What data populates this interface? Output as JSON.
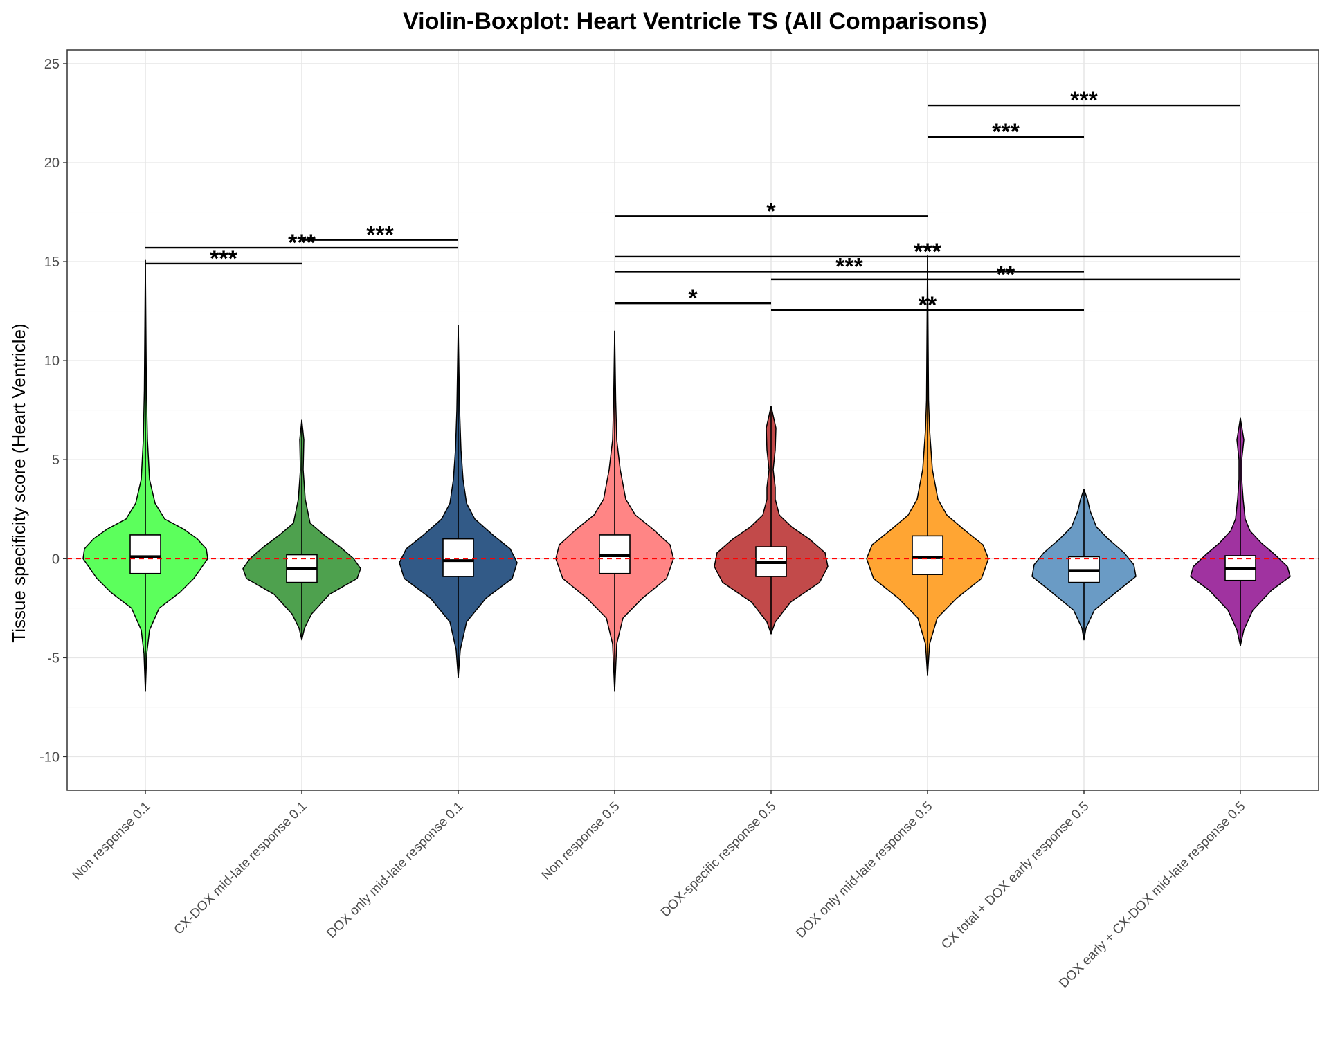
{
  "chart_data": {
    "type": "violin",
    "title": "Violin-Boxplot: Heart Ventricle TS (All Comparisons)",
    "xlabel": "",
    "ylabel": "Tissue specificity score (Heart Ventricle)",
    "ylim": [
      -11.7,
      25.7
    ],
    "yticks": [
      -10,
      -5,
      0,
      5,
      10,
      15,
      20,
      25
    ],
    "reference_line": {
      "y": 0,
      "color": "#ff0000",
      "style": "dashed"
    },
    "grid": true,
    "categories": [
      "Non response 0.1",
      "CX-DOX mid-late response 0.1",
      "DOX only mid-late response 0.1",
      "Non response 0.5",
      "DOX-specific response 0.5",
      "DOX only mid-late response 0.5",
      "CX total + DOX early response 0.5",
      "DOX early + CX-DOX mid-late response 0.5"
    ],
    "groups": [
      {
        "color": "#5cff5c",
        "min": -6.7,
        "max": 15.1,
        "q1": -0.75,
        "median": 0.1,
        "q3": 1.2,
        "whisker_low": -3.8,
        "whisker_high": 4.1,
        "profile": [
          [
            -6.7,
            0
          ],
          [
            -4.8,
            2
          ],
          [
            -3.6,
            6
          ],
          [
            -2.5,
            20
          ],
          [
            -1.7,
            50
          ],
          [
            -1.0,
            70
          ],
          [
            0.0,
            90
          ],
          [
            0.5,
            88
          ],
          [
            1.0,
            75
          ],
          [
            1.5,
            55
          ],
          [
            2.0,
            28
          ],
          [
            2.8,
            14
          ],
          [
            4.0,
            6
          ],
          [
            6.0,
            3
          ],
          [
            8.5,
            1.5
          ],
          [
            15.1,
            0
          ]
        ]
      },
      {
        "color": "#4ea14e",
        "min": -4.1,
        "max": 7.0,
        "q1": -1.2,
        "median": -0.5,
        "q3": 0.2,
        "whisker_low": -3.3,
        "whisker_high": 2.4,
        "profile": [
          [
            -4.1,
            0
          ],
          [
            -3.5,
            4
          ],
          [
            -2.8,
            14
          ],
          [
            -1.8,
            40
          ],
          [
            -1.0,
            80
          ],
          [
            -0.5,
            85
          ],
          [
            0.0,
            75
          ],
          [
            0.6,
            55
          ],
          [
            1.2,
            32
          ],
          [
            1.8,
            12
          ],
          [
            3.0,
            5
          ],
          [
            4.5,
            2
          ],
          [
            6.0,
            3
          ],
          [
            7.0,
            0
          ]
        ]
      },
      {
        "color": "#325a87",
        "min": -6.0,
        "max": 11.8,
        "q1": -0.9,
        "median": -0.1,
        "q3": 1.0,
        "whisker_low": -3.7,
        "whisker_high": 3.6,
        "profile": [
          [
            -6.0,
            0
          ],
          [
            -4.6,
            3
          ],
          [
            -3.2,
            12
          ],
          [
            -2.0,
            40
          ],
          [
            -1.0,
            78
          ],
          [
            -0.2,
            85
          ],
          [
            0.5,
            75
          ],
          [
            1.2,
            50
          ],
          [
            2.0,
            24
          ],
          [
            2.8,
            12
          ],
          [
            4.0,
            7
          ],
          [
            5.5,
            4
          ],
          [
            7.5,
            2
          ],
          [
            11.8,
            0
          ]
        ]
      },
      {
        "color": "#ff8585",
        "min": -6.7,
        "max": 11.5,
        "q1": -0.75,
        "median": 0.15,
        "q3": 1.2,
        "whisker_low": -3.9,
        "whisker_high": 4.1,
        "profile": [
          [
            -6.7,
            0
          ],
          [
            -4.3,
            3
          ],
          [
            -3.0,
            12
          ],
          [
            -2.0,
            40
          ],
          [
            -1.0,
            75
          ],
          [
            0.0,
            85
          ],
          [
            0.7,
            80
          ],
          [
            1.5,
            55
          ],
          [
            2.2,
            30
          ],
          [
            3.0,
            16
          ],
          [
            4.5,
            8
          ],
          [
            6.0,
            3
          ],
          [
            8.0,
            1.5
          ],
          [
            11.5,
            0
          ]
        ]
      },
      {
        "color": "#c24a4a",
        "min": -3.8,
        "max": 7.7,
        "q1": -0.9,
        "median": -0.2,
        "q3": 0.6,
        "whisker_low": -3.0,
        "whisker_high": 2.4,
        "profile": [
          [
            -3.8,
            0
          ],
          [
            -3.2,
            6
          ],
          [
            -2.2,
            28
          ],
          [
            -1.2,
            70
          ],
          [
            -0.4,
            82
          ],
          [
            0.3,
            78
          ],
          [
            1.0,
            55
          ],
          [
            1.6,
            30
          ],
          [
            2.2,
            12
          ],
          [
            3.0,
            6
          ],
          [
            3.6,
            6
          ],
          [
            4.5,
            3
          ],
          [
            5.5,
            6
          ],
          [
            6.6,
            7
          ],
          [
            7.7,
            0
          ]
        ]
      },
      {
        "color": "#ffa533",
        "min": -5.9,
        "max": 15.3,
        "q1": -0.8,
        "median": 0.05,
        "q3": 1.15,
        "whisker_low": -3.7,
        "whisker_high": 4.0,
        "profile": [
          [
            -5.9,
            0
          ],
          [
            -4.3,
            3
          ],
          [
            -3.0,
            14
          ],
          [
            -2.0,
            42
          ],
          [
            -1.0,
            78
          ],
          [
            0.0,
            88
          ],
          [
            0.7,
            80
          ],
          [
            1.4,
            55
          ],
          [
            2.2,
            28
          ],
          [
            3.0,
            15
          ],
          [
            4.5,
            7
          ],
          [
            6.5,
            3
          ],
          [
            8.0,
            1.5
          ],
          [
            15.3,
            0
          ]
        ]
      },
      {
        "color": "#6a9bc5",
        "min": -4.1,
        "max": 3.5,
        "q1": -1.2,
        "median": -0.6,
        "q3": 0.1,
        "whisker_low": -3.2,
        "whisker_high": 2.2,
        "profile": [
          [
            -4.1,
            0
          ],
          [
            -3.5,
            3
          ],
          [
            -2.6,
            15
          ],
          [
            -1.6,
            50
          ],
          [
            -0.9,
            75
          ],
          [
            -0.3,
            72
          ],
          [
            0.3,
            58
          ],
          [
            1.0,
            35
          ],
          [
            1.6,
            18
          ],
          [
            2.4,
            9
          ],
          [
            3.0,
            5
          ],
          [
            3.5,
            0
          ]
        ]
      },
      {
        "color": "#a033a0",
        "min": -4.4,
        "max": 7.1,
        "q1": -1.1,
        "median": -0.5,
        "q3": 0.15,
        "whisker_low": -3.0,
        "whisker_high": 1.8,
        "profile": [
          [
            -4.4,
            0
          ],
          [
            -3.6,
            5
          ],
          [
            -2.6,
            18
          ],
          [
            -1.6,
            45
          ],
          [
            -0.9,
            72
          ],
          [
            -0.4,
            68
          ],
          [
            0.2,
            50
          ],
          [
            0.8,
            30
          ],
          [
            1.4,
            14
          ],
          [
            2.0,
            7
          ],
          [
            3.0,
            4
          ],
          [
            4.0,
            2
          ],
          [
            5.0,
            2
          ],
          [
            6.0,
            5
          ],
          [
            7.1,
            0
          ]
        ]
      }
    ],
    "comparisons": [
      {
        "from": 0,
        "to": 1,
        "y": 14.9,
        "label": "***"
      },
      {
        "from": 0,
        "to": 2,
        "y": 15.7,
        "label": "***"
      },
      {
        "from": 1,
        "to": 2,
        "y": 16.1,
        "label": "***"
      },
      {
        "from": 3,
        "to": 4,
        "y": 12.9,
        "label": "*"
      },
      {
        "from": 3,
        "to": 5,
        "y": 17.3,
        "label": "*"
      },
      {
        "from": 3,
        "to": 6,
        "y": 14.5,
        "label": "***"
      },
      {
        "from": 3,
        "to": 7,
        "y": 15.25,
        "label": "***"
      },
      {
        "from": 4,
        "to": 6,
        "y": 12.55,
        "label": "**"
      },
      {
        "from": 4,
        "to": 7,
        "y": 14.1,
        "label": "**"
      },
      {
        "from": 5,
        "to": 6,
        "y": 21.3,
        "label": "***"
      },
      {
        "from": 5,
        "to": 7,
        "y": 22.9,
        "label": "***"
      }
    ]
  }
}
